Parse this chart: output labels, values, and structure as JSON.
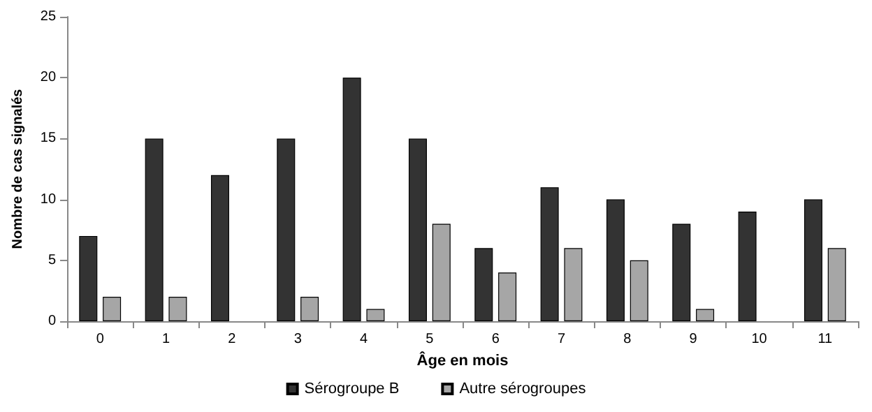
{
  "chart_data": {
    "type": "bar",
    "xlabel": "Âge en mois",
    "ylabel": "Nombre de cas signalés",
    "categories": [
      "0",
      "1",
      "2",
      "3",
      "4",
      "5",
      "6",
      "7",
      "8",
      "9",
      "10",
      "11"
    ],
    "series": [
      {
        "name": "Sérogroupe B",
        "color": "#333333",
        "values": [
          7,
          15,
          12,
          15,
          20,
          15,
          6,
          11,
          10,
          8,
          9,
          10
        ]
      },
      {
        "name": "Autre sérogroupes",
        "color": "#a6a6a6",
        "values": [
          2,
          2,
          null,
          2,
          1,
          8,
          4,
          6,
          5,
          1,
          null,
          6
        ]
      }
    ],
    "ylim": [
      0,
      25
    ],
    "yticks": [
      0,
      5,
      10,
      15,
      20,
      25
    ],
    "grid": false,
    "legend": "bottom"
  }
}
